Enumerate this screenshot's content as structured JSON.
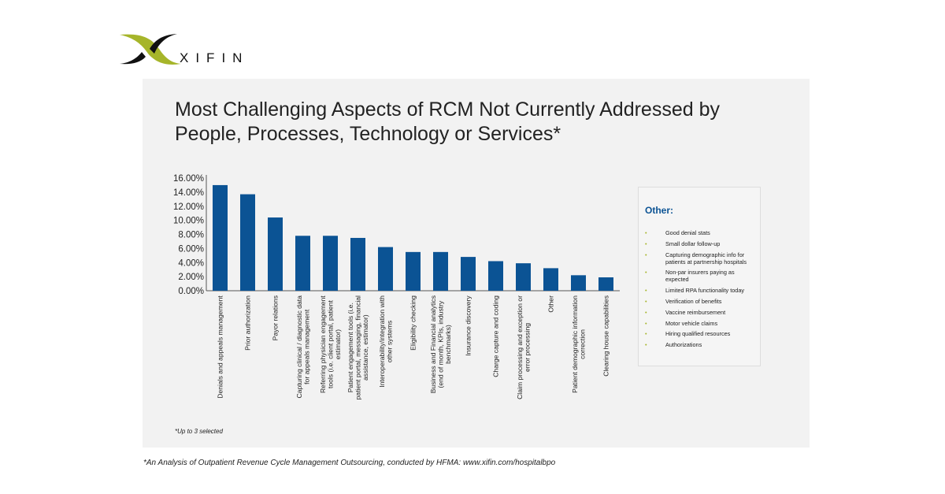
{
  "logo": {
    "text": "XIFIN",
    "colors": {
      "green": "#a6b52a",
      "black": "#111111"
    }
  },
  "chart_data": {
    "type": "bar",
    "title": "Most Challenging Aspects of RCM Not Currently Addressed by People, Processes, Technology or Services*",
    "categories": [
      "Denials and appeals management",
      "Prior authorization",
      "Payor relations",
      "Capturing clinical / diagnostic data for appeals management",
      "Referring physician engagement tools (i.e. client portal, patient estimator)",
      "Patient engagement tools (i.e. patient portal, messaging, financial assistance, estimator)",
      "Interoperability/integration with other  systems",
      "Eligibility checking",
      "Business and Financial analytics (end of month, KPIs, industry benchmarks)",
      "Insurance discovery",
      "Charge capture and coding",
      "Claim processing and exception or error processing",
      "Other",
      "Patient demographic information correction",
      "Clearing house capabilities"
    ],
    "category_lines": [
      [
        "Denials and appeals management"
      ],
      [
        "Prior authorization"
      ],
      [
        "Payor relations"
      ],
      [
        "Capturing clinical / diagnostic data",
        "for appeals management"
      ],
      [
        "Referring physician engagement",
        "tools (i.e. client portal, patient",
        "estimator)"
      ],
      [
        "Patient engagement tools (i.e.",
        "patient portal, messaging, financial",
        "assistance, estimator)"
      ],
      [
        "Interoperability/integration with",
        "other  systems"
      ],
      [
        "Eligibility checking"
      ],
      [
        "Business and Financial analytics",
        "(end of month, KPIs, industry",
        "benchmarks)"
      ],
      [
        "Insurance discovery"
      ],
      [
        "Charge capture and coding"
      ],
      [
        "Claim processing and exception or",
        "error processing"
      ],
      [
        "Other"
      ],
      [
        "Patient demographic information",
        "correction"
      ],
      [
        "Clearing house capabilities"
      ]
    ],
    "values": [
      15.0,
      13.7,
      10.4,
      7.8,
      7.8,
      7.5,
      6.2,
      5.5,
      5.5,
      4.8,
      4.2,
      3.9,
      3.2,
      2.2,
      1.9
    ],
    "ylim": [
      0,
      16
    ],
    "yticks": [
      "0.00%",
      "2.00%",
      "4.00%",
      "6.00%",
      "8.00%",
      "10.00%",
      "12.00%",
      "14.00%",
      "16.00%"
    ],
    "xlabel": "",
    "ylabel": "",
    "grid": false,
    "bar_color": "#0b5394"
  },
  "legend": {
    "title": "Other:",
    "items": [
      "Good denial stats",
      "Small dollar follow-up",
      "Capturing demographic info for patients at partnership hospitals",
      "Non-par insurers paying as expected",
      "Limited RPA functionality today",
      "Verification of benefits",
      "Vaccine reimbursement",
      "Motor vehicle claims",
      "Hiring qualified resources",
      "Authorizations"
    ]
  },
  "note": "*Up to 3 selected",
  "source": "*An Analysis of Outpatient Revenue Cycle Management Outsourcing, conducted by HFMA: www.xifin.com/hospitalbpo"
}
